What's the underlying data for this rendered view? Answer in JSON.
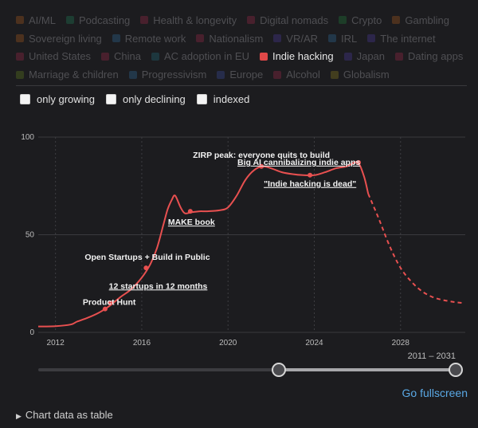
{
  "tag_rows": [
    [
      {
        "label": "AI/ML",
        "color": "#a65a1e",
        "active": false
      },
      {
        "label": "Podcasting",
        "color": "#1f7a55",
        "active": false
      },
      {
        "label": "Health & longevity",
        "color": "#9b2747",
        "active": false
      },
      {
        "label": "Digital nomads",
        "color": "#9b2747",
        "active": false
      },
      {
        "label": "Crypto",
        "color": "#1f7a3a",
        "active": false
      },
      {
        "label": "Gambling",
        "color": "#a65a1e",
        "active": false
      }
    ],
    [
      {
        "label": "Sovereign living",
        "color": "#a65a1e",
        "active": false
      },
      {
        "label": "Remote work",
        "color": "#2e6a99",
        "active": false
      },
      {
        "label": "Nationalism",
        "color": "#9b2747",
        "active": false
      },
      {
        "label": "VR/AR",
        "color": "#4a3a9b",
        "active": false
      },
      {
        "label": "IRL",
        "color": "#2e6a99",
        "active": false
      },
      {
        "label": "The internet",
        "color": "#4a3a9b",
        "active": false
      }
    ],
    [
      {
        "label": "United States",
        "color": "#9b2747",
        "active": false
      },
      {
        "label": "China",
        "color": "#9b2747",
        "active": false
      },
      {
        "label": "AC adoption in EU",
        "color": "#1f6a78",
        "active": false
      },
      {
        "label": "Indie hacking",
        "color": "#e04848",
        "active": true
      },
      {
        "label": "Japan",
        "color": "#4a3a9b",
        "active": false
      },
      {
        "label": "Dating apps",
        "color": "#9b2747",
        "active": false
      }
    ],
    [
      {
        "label": "Marriage & children",
        "color": "#5e7a1e",
        "active": false
      },
      {
        "label": "Progressivism",
        "color": "#2e6a99",
        "active": false
      },
      {
        "label": "Europe",
        "color": "#3a4a9b",
        "active": false
      },
      {
        "label": "Alcohol",
        "color": "#9b2747",
        "active": false
      },
      {
        "label": "Globalism",
        "color": "#8a7a1e",
        "active": false
      }
    ]
  ],
  "options": {
    "only_growing": "only growing",
    "only_declining": "only declining",
    "indexed": "indexed"
  },
  "range_label": "2011 – 2031",
  "fullscreen_label": "Go fullscreen",
  "table_toggle_label": "Chart data as table",
  "chart_data": {
    "type": "line",
    "title": "",
    "xlabel": "",
    "ylabel": "",
    "xlim": [
      2011.2,
      2031
    ],
    "ylim": [
      0,
      100
    ],
    "x_ticks": [
      2012,
      2016,
      2020,
      2024,
      2028
    ],
    "y_ticks": [
      0,
      50,
      100
    ],
    "series_color": "#e85050",
    "series": [
      {
        "name": "Indie hacking",
        "solid_points": [
          [
            2011.2,
            3
          ],
          [
            2012,
            3.2
          ],
          [
            2012.7,
            4
          ],
          [
            2013,
            5.5
          ],
          [
            2013.5,
            7.5
          ],
          [
            2014,
            10
          ],
          [
            2014.5,
            13.5
          ],
          [
            2015,
            18
          ],
          [
            2015.5,
            22
          ],
          [
            2016,
            28
          ],
          [
            2016.4,
            35
          ],
          [
            2016.7,
            43
          ],
          [
            2017,
            55
          ],
          [
            2017.2,
            63
          ],
          [
            2017.4,
            68
          ],
          [
            2017.55,
            70
          ],
          [
            2017.8,
            64
          ],
          [
            2018,
            61
          ],
          [
            2018.3,
            61.5
          ],
          [
            2018.7,
            62
          ],
          [
            2019,
            62
          ],
          [
            2019.6,
            62.5
          ],
          [
            2020,
            64
          ],
          [
            2020.4,
            70
          ],
          [
            2020.8,
            78
          ],
          [
            2021.2,
            83
          ],
          [
            2021.6,
            85
          ],
          [
            2022,
            84
          ],
          [
            2022.5,
            82
          ],
          [
            2023,
            81
          ],
          [
            2023.5,
            80.5
          ],
          [
            2024,
            80.5
          ],
          [
            2024.5,
            82
          ],
          [
            2025,
            84
          ],
          [
            2025.5,
            85
          ],
          [
            2026,
            87
          ],
          [
            2026.3,
            80
          ],
          [
            2026.5,
            71
          ]
        ],
        "forecast_points": [
          [
            2026.5,
            71
          ],
          [
            2027,
            58
          ],
          [
            2027.5,
            44
          ],
          [
            2028,
            33
          ],
          [
            2028.5,
            26
          ],
          [
            2029,
            21
          ],
          [
            2029.5,
            18
          ],
          [
            2030,
            16.5
          ],
          [
            2030.5,
            15.5
          ],
          [
            2030.9,
            15
          ]
        ]
      }
    ],
    "annotations": [
      {
        "x": 2014.3,
        "y": 12,
        "text": "Product Hunt",
        "underline": false
      },
      {
        "x": 2014.55,
        "y": 15,
        "text": "12 startups in 12 months",
        "underline": true
      },
      {
        "x": 2016.2,
        "y": 33,
        "text": "Open Startups + Build in Public",
        "underline": false
      },
      {
        "x": 2018.25,
        "y": 62,
        "text": "MAKE book",
        "underline": true
      },
      {
        "x": 2021.55,
        "y": 85,
        "text": "ZIRP peak: everyone quits to build",
        "underline": false
      },
      {
        "x": 2023.8,
        "y": 80.5,
        "text": "\"Indie hacking is dead\"",
        "underline": true
      },
      {
        "x": 2026.05,
        "y": 87,
        "text": "Big AI cannibalizing indie apps",
        "underline": true
      }
    ]
  }
}
